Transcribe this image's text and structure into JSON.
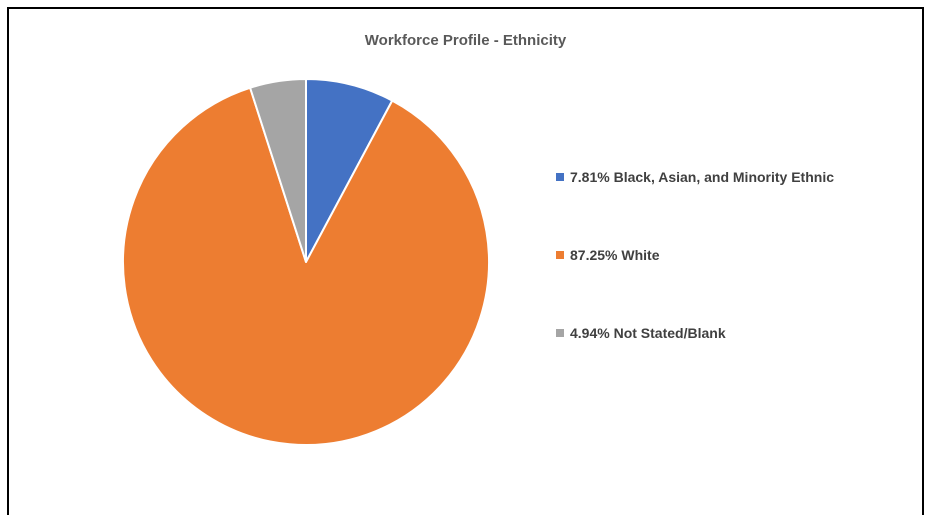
{
  "chart_data": {
    "type": "pie",
    "title": "Workforce Profile - Ethnicity",
    "slices": [
      {
        "name": "Black, Asian, and Minority Ethnic",
        "value": 7.81,
        "label": "7.81% Black, Asian, and Minority Ethnic",
        "color": "#4472C4"
      },
      {
        "name": "White",
        "value": 87.25,
        "label": "87.25% White",
        "color": "#ED7D31"
      },
      {
        "name": "Not Stated/Blank",
        "value": 4.94,
        "label": "4.94% Not Stated/Blank",
        "color": "#A5A5A5"
      }
    ],
    "start_angle": "12 o'clock",
    "direction": "clockwise",
    "legend_position": "right"
  }
}
